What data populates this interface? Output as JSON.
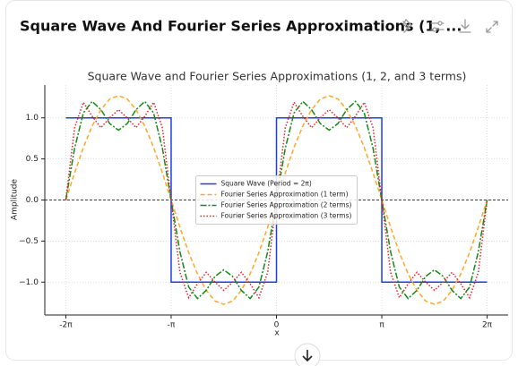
{
  "header": {
    "title": "Square Wave And Fourier Series Approximations (1, ..."
  },
  "chart_data": {
    "type": "line",
    "title": "Square Wave and Fourier Series Approximations (1, 2, and 3 terms)",
    "x_label": "x",
    "y_label": "Amplitude",
    "x": [
      -6.283,
      -6.021,
      -5.76,
      -5.498,
      -5.236,
      -4.974,
      -4.712,
      -4.451,
      -4.189,
      -3.927,
      -3.665,
      -3.403,
      -3.142,
      -2.88,
      -2.618,
      -2.356,
      -2.094,
      -1.833,
      -1.571,
      -1.309,
      -1.047,
      -0.785,
      -0.524,
      -0.262,
      0,
      0.262,
      0.524,
      0.785,
      1.047,
      1.309,
      1.571,
      1.833,
      2.094,
      2.356,
      2.618,
      2.88,
      3.142,
      3.403,
      3.665,
      3.927,
      4.189,
      4.451,
      4.712,
      4.974,
      5.236,
      5.498,
      5.76,
      6.021,
      6.283
    ],
    "series": [
      {
        "name": "Square Wave (Period = 2π)",
        "color": "#1a3ee8",
        "style": "solid",
        "x": [
          -6.283,
          -3.142,
          -3.142,
          0,
          0,
          3.142,
          3.142,
          6.283
        ],
        "values": [
          1,
          1,
          -1,
          -1,
          1,
          1,
          -1,
          -1
        ]
      },
      {
        "name": "Fourier Series Approximation (1 term)",
        "color": "#ffa726",
        "style": "dashed",
        "values": [
          0,
          0.33,
          0.64,
          0.9,
          1.1,
          1.23,
          1.27,
          1.23,
          1.1,
          0.9,
          0.64,
          0.33,
          0,
          -0.33,
          -0.64,
          -0.9,
          -1.1,
          -1.23,
          -1.27,
          -1.23,
          -1.1,
          -0.9,
          -0.64,
          -0.33,
          0,
          0.33,
          0.64,
          0.9,
          1.1,
          1.23,
          1.27,
          1.23,
          1.1,
          0.9,
          0.64,
          0.33,
          0,
          -0.33,
          -0.64,
          -0.9,
          -1.1,
          -1.23,
          -1.27,
          -1.23,
          -1.1,
          -0.9,
          -0.64,
          -0.33,
          0
        ]
      },
      {
        "name": "Fourier Series Approximation (2 terms)",
        "color": "#138a13",
        "style": "dashdot",
        "values": [
          0,
          0.63,
          1.06,
          1.2,
          1.1,
          0.93,
          0.85,
          0.93,
          1.1,
          1.2,
          1.06,
          0.63,
          0,
          -0.63,
          -1.06,
          -1.2,
          -1.1,
          -0.93,
          -0.85,
          -0.93,
          -1.1,
          -1.2,
          -1.06,
          -0.63,
          0,
          0.63,
          1.06,
          1.2,
          1.1,
          0.93,
          0.85,
          0.93,
          1.1,
          1.2,
          1.06,
          0.63,
          0,
          -0.63,
          -1.06,
          -1.2,
          -1.1,
          -0.93,
          -0.85,
          -0.93,
          -1.1,
          -1.2,
          -1.06,
          -0.63,
          0
        ]
      },
      {
        "name": "Fourier Series Approximation (3 terms)",
        "color": "#e8202a",
        "style": "dotted",
        "values": [
          0,
          0.88,
          1.19,
          1.02,
          0.88,
          1.0,
          1.1,
          1.0,
          0.88,
          1.02,
          1.19,
          0.88,
          0,
          -0.88,
          -1.19,
          -1.02,
          -0.88,
          -1.0,
          -1.1,
          -1.0,
          -0.88,
          -1.02,
          -1.19,
          -0.88,
          0,
          0.88,
          1.19,
          1.02,
          0.88,
          1.0,
          1.1,
          1.0,
          0.88,
          1.02,
          1.19,
          0.88,
          0,
          -0.88,
          -1.19,
          -1.02,
          -0.88,
          -1.0,
          -1.1,
          -1.0,
          -0.88,
          -1.02,
          -1.19,
          -0.88,
          0
        ]
      }
    ],
    "xlim": [
      -6.91,
      6.91
    ],
    "ylim": [
      -1.4,
      1.4
    ],
    "xticks": [
      {
        "value": -6.283,
        "label": "-2π"
      },
      {
        "value": -3.142,
        "label": "-π"
      },
      0,
      {
        "value": 3.142,
        "label": "π"
      },
      {
        "value": 6.283,
        "label": "2π"
      }
    ],
    "yticks": [
      {
        "value": -1,
        "label": "−1.0"
      },
      {
        "value": -0.5,
        "label": "−0.5"
      },
      {
        "value": 0,
        "label": "0.0"
      },
      {
        "value": 0.5,
        "label": "0.5"
      },
      {
        "value": 1,
        "label": "1.0"
      }
    ],
    "grid": true,
    "zero_line": true,
    "legend": "center"
  }
}
